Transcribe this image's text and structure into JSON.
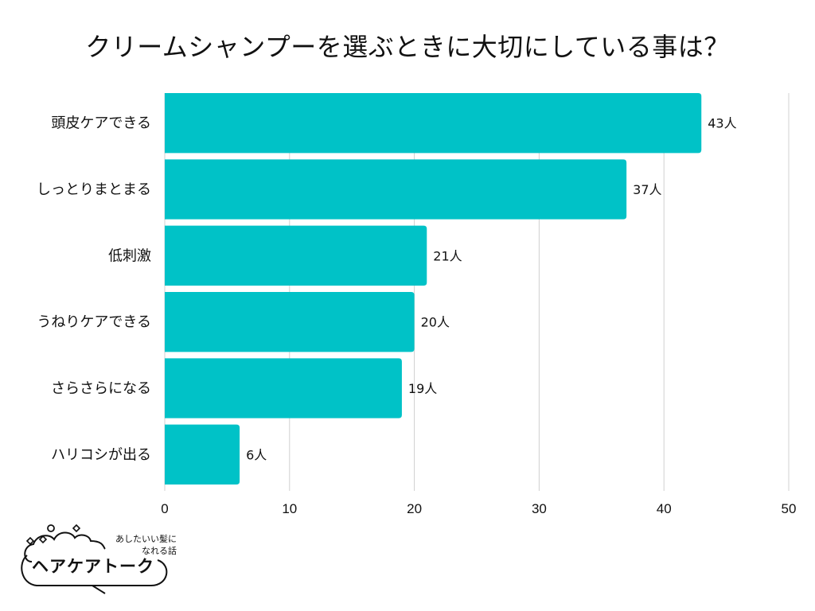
{
  "chart_data": {
    "type": "bar",
    "orientation": "horizontal",
    "title": "クリームシャンプーを選ぶときに大切にしている事は？",
    "categories": [
      "頭皮ケアできる",
      "しっとりまとまる",
      "低刺激",
      "うねりケアできる",
      "さらさらになる",
      "ハリコシが出る"
    ],
    "values": [
      43,
      37,
      21,
      20,
      19,
      6
    ],
    "value_labels": [
      "43人",
      "37人",
      "21人",
      "20人",
      "19人",
      "6人"
    ],
    "xlim": [
      0,
      50
    ],
    "xticks": [
      "0",
      "10",
      "20",
      "30",
      "40",
      "50"
    ],
    "xlabel": "",
    "ylabel": "",
    "grid": true,
    "bar_color": "#00c2c7",
    "grid_color": "#d0d0d0"
  },
  "logo": {
    "tagline_line1": "あしたいい髪に",
    "tagline_line2": "なれる話",
    "name": "ヘアケアトーク"
  }
}
